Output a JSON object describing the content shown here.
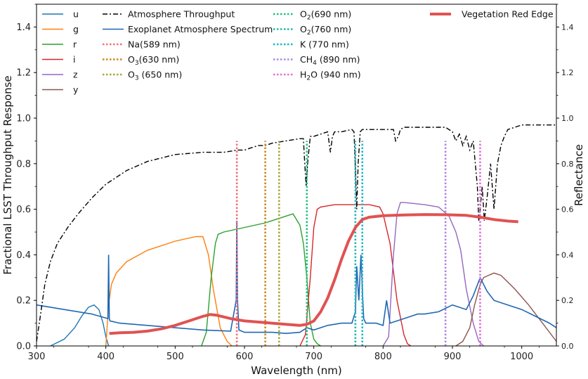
{
  "chart_data": {
    "type": "line",
    "xlabel": "Wavelength (nm)",
    "ylabel": "Fractional LSST Throughput Response",
    "y2label": "Reflectance",
    "xlim": [
      300,
      1050
    ],
    "ylim": [
      0,
      1.5
    ],
    "xticks": [
      "300",
      "400",
      "500",
      "600",
      "700",
      "800",
      "900",
      "1000"
    ],
    "xtick_values": [
      300,
      400,
      500,
      600,
      700,
      800,
      900,
      1000
    ],
    "yticks": [
      "0.0",
      "0.2",
      "0.4",
      "0.6",
      "0.8",
      "1.0",
      "1.2",
      "1.4"
    ],
    "ytick_values": [
      0,
      0.2,
      0.4,
      0.6,
      0.8,
      1.0,
      1.2,
      1.4
    ],
    "grid": false,
    "bands": [
      {
        "name": "u",
        "color": "#1f77b4",
        "x": [
          320,
          340,
          355,
          365,
          375,
          383,
          390,
          396,
          400,
          404
        ],
        "y": [
          0,
          0.03,
          0.08,
          0.13,
          0.17,
          0.18,
          0.16,
          0.1,
          0.04,
          0
        ]
      },
      {
        "name": "g",
        "color": "#ff7f0e",
        "x": [
          400,
          404,
          408,
          415,
          430,
          460,
          500,
          530,
          540,
          548,
          555,
          565,
          575,
          582
        ],
        "y": [
          0,
          0.18,
          0.27,
          0.32,
          0.37,
          0.42,
          0.46,
          0.48,
          0.48,
          0.4,
          0.25,
          0.08,
          0.02,
          0
        ]
      },
      {
        "name": "r",
        "color": "#2ca02c",
        "x": [
          538,
          545,
          552,
          558,
          562,
          570,
          600,
          630,
          650,
          670,
          680,
          685,
          690,
          695,
          700,
          705,
          710
        ],
        "y": [
          0,
          0.06,
          0.3,
          0.45,
          0.49,
          0.5,
          0.52,
          0.54,
          0.56,
          0.58,
          0.53,
          0.45,
          0.3,
          0.1,
          0.03,
          0.01,
          0
        ]
      },
      {
        "name": "i",
        "color": "#d62728",
        "x": [
          680,
          688,
          695,
          700,
          705,
          710,
          730,
          760,
          780,
          795,
          800,
          810,
          820,
          830,
          835,
          840
        ],
        "y": [
          0,
          0.05,
          0.3,
          0.52,
          0.6,
          0.61,
          0.62,
          0.62,
          0.62,
          0.61,
          0.58,
          0.45,
          0.2,
          0.05,
          0.01,
          0
        ]
      },
      {
        "name": "z",
        "color": "#9467bd",
        "x": [
          800,
          808,
          815,
          820,
          825,
          830,
          860,
          880,
          895,
          905,
          912,
          920,
          930,
          938,
          945
        ],
        "y": [
          0,
          0.04,
          0.4,
          0.58,
          0.63,
          0.63,
          0.62,
          0.61,
          0.57,
          0.5,
          0.42,
          0.25,
          0.1,
          0.02,
          0
        ]
      },
      {
        "name": "y",
        "color": "#8c564b",
        "x": [
          905,
          915,
          925,
          932,
          940,
          945,
          952,
          960,
          970,
          990,
          1010,
          1030,
          1050
        ],
        "y": [
          0,
          0.02,
          0.08,
          0.18,
          0.27,
          0.3,
          0.31,
          0.32,
          0.31,
          0.25,
          0.18,
          0.1,
          0.02
        ]
      }
    ],
    "atmosphere_throughput": {
      "name": "Atmosphere Throughput",
      "color": "#000000",
      "style": "dashdot",
      "x": [
        300,
        305,
        312,
        320,
        330,
        345,
        360,
        380,
        400,
        430,
        460,
        500,
        540,
        570,
        590,
        600,
        610,
        620,
        630,
        640,
        660,
        680,
        685,
        687,
        689,
        691,
        695,
        700,
        720,
        724,
        727,
        730,
        740,
        755,
        758,
        760,
        762,
        764,
        767,
        770,
        775,
        800,
        815,
        818,
        822,
        825,
        830,
        860,
        890,
        900,
        905,
        910,
        915,
        920,
        925,
        930,
        933,
        936,
        938,
        940,
        943,
        946,
        950,
        955,
        960,
        965,
        970,
        975,
        980,
        990,
        1000,
        1020,
        1050
      ],
      "y": [
        0.02,
        0.12,
        0.27,
        0.37,
        0.45,
        0.52,
        0.58,
        0.65,
        0.71,
        0.77,
        0.81,
        0.84,
        0.85,
        0.85,
        0.86,
        0.86,
        0.87,
        0.88,
        0.88,
        0.89,
        0.9,
        0.91,
        0.91,
        0.8,
        0.7,
        0.8,
        0.92,
        0.92,
        0.94,
        0.85,
        0.92,
        0.94,
        0.94,
        0.95,
        0.94,
        0.78,
        0.6,
        0.8,
        0.94,
        0.95,
        0.95,
        0.95,
        0.95,
        0.9,
        0.92,
        0.95,
        0.96,
        0.96,
        0.96,
        0.94,
        0.9,
        0.93,
        0.88,
        0.92,
        0.86,
        0.9,
        0.8,
        0.7,
        0.55,
        0.6,
        0.7,
        0.55,
        0.65,
        0.8,
        0.6,
        0.8,
        0.88,
        0.92,
        0.95,
        0.96,
        0.97,
        0.97,
        0.97
      ]
    },
    "exoplanet_spectrum": {
      "name": "Exoplanet Atmosphere Spectrum",
      "color": "#1f67b4",
      "x": [
        300,
        340,
        380,
        403,
        404,
        405,
        406,
        420,
        460,
        500,
        540,
        580,
        588,
        589,
        590,
        592,
        600,
        640,
        660,
        680,
        690,
        700,
        720,
        740,
        755,
        760,
        762,
        765,
        768,
        770,
        772,
        775,
        790,
        800,
        805,
        810,
        820,
        830,
        840,
        850,
        860,
        880,
        900,
        920,
        930,
        940,
        950,
        960,
        980,
        1000,
        1020,
        1040,
        1050
      ],
      "y": [
        0.18,
        0.16,
        0.14,
        0.12,
        0.4,
        0.12,
        0.11,
        0.1,
        0.09,
        0.08,
        0.07,
        0.065,
        0.2,
        0.55,
        0.2,
        0.07,
        0.06,
        0.06,
        0.055,
        0.06,
        0.08,
        0.07,
        0.09,
        0.1,
        0.1,
        0.15,
        0.35,
        0.2,
        0.4,
        0.25,
        0.12,
        0.1,
        0.1,
        0.09,
        0.2,
        0.1,
        0.11,
        0.12,
        0.13,
        0.14,
        0.14,
        0.15,
        0.18,
        0.16,
        0.22,
        0.3,
        0.24,
        0.2,
        0.18,
        0.16,
        0.13,
        0.1,
        0.08
      ]
    },
    "vegetation_red_edge": {
      "name": "Vegetation Red Edge",
      "color": "#e05252",
      "x": [
        405,
        420,
        440,
        460,
        480,
        500,
        520,
        540,
        550,
        560,
        580,
        600,
        620,
        640,
        660,
        680,
        690,
        700,
        710,
        720,
        730,
        740,
        750,
        760,
        770,
        780,
        800,
        830,
        860,
        890,
        920,
        940,
        960,
        980,
        995
      ],
      "y": [
        0.055,
        0.058,
        0.06,
        0.065,
        0.075,
        0.09,
        0.11,
        0.13,
        0.138,
        0.135,
        0.12,
        0.11,
        0.105,
        0.1,
        0.095,
        0.09,
        0.095,
        0.11,
        0.15,
        0.21,
        0.29,
        0.38,
        0.46,
        0.52,
        0.555,
        0.565,
        0.572,
        0.575,
        0.577,
        0.576,
        0.573,
        0.565,
        0.555,
        0.548,
        0.545
      ]
    },
    "absorption_lines": [
      {
        "name": "Na(589 nm)",
        "x": 589,
        "color": "#f0707a",
        "ymax": 0.9
      },
      {
        "name": "O3(630 nm)",
        "x": 630,
        "color": "#cc8a1e",
        "ymax": 0.9
      },
      {
        "name": "O3 (650 nm)",
        "x": 650,
        "color": "#a8a83a",
        "ymax": 0.9
      },
      {
        "name": "O2(690 nm)",
        "x": 690,
        "color": "#20c080",
        "ymax": 0.9
      },
      {
        "name": "O2(760 nm)",
        "x": 760,
        "color": "#20b8b0",
        "ymax": 0.9
      },
      {
        "name": "K (770 nm)",
        "x": 770,
        "color": "#18b8c8",
        "ymax": 0.9
      },
      {
        "name": "CH4 (890 nm)",
        "x": 890,
        "color": "#b088e0",
        "ymax": 0.9
      },
      {
        "name": "H2O (940 nm)",
        "x": 940,
        "color": "#e070d8",
        "ymax": 0.9
      }
    ],
    "legend": {
      "col1": [
        "u",
        "g",
        "r",
        "i",
        "z",
        "y"
      ],
      "col2": [
        "Atmosphere Throughput",
        "Exoplanet Atmosphere Spectrum",
        "Na(589 nm)",
        "O3(630 nm)",
        "O3 (650 nm)"
      ],
      "col3": [
        "O2(690 nm)",
        "O2(760 nm)",
        "K (770 nm)",
        "CH4 (890 nm)",
        "H2O (940 nm)"
      ],
      "col4": [
        "Vegetation Red Edge"
      ]
    }
  }
}
